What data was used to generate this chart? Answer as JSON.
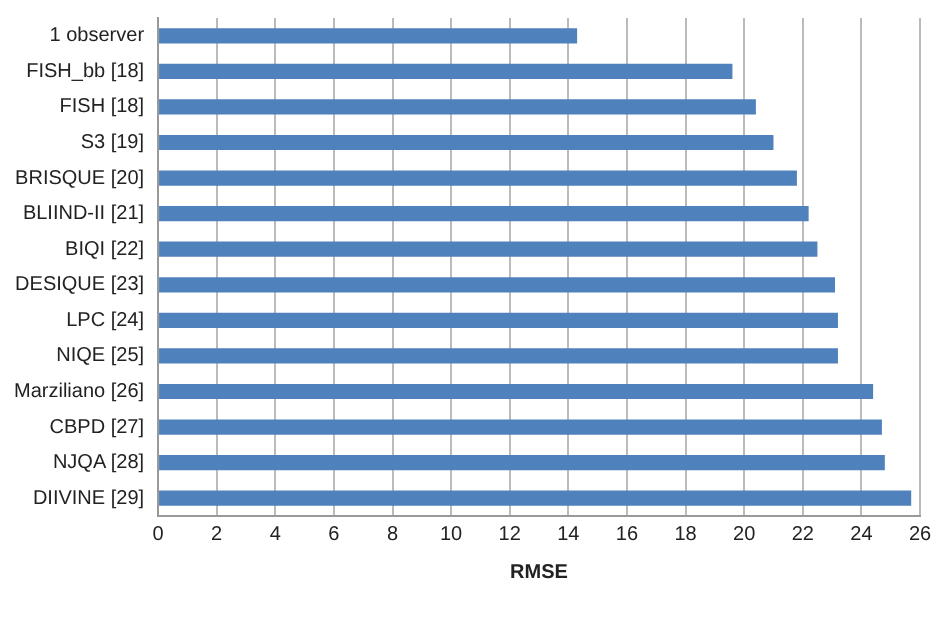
{
  "chart_data": {
    "type": "bar",
    "orientation": "horizontal",
    "xlabel": "RMSE",
    "categories": [
      "1 observer",
      "FISH_bb [18]",
      "FISH [18]",
      "S3 [19]",
      "BRISQUE [20]",
      "BLIIND-II [21]",
      "BIQI [22]",
      "DESIQUE [23]",
      "LPC [24]",
      "NIQE [25]",
      "Marziliano [26]",
      "CBPD [27]",
      "NJQA [28]",
      "DIIVINE [29]"
    ],
    "values": [
      14.3,
      19.6,
      20.4,
      21.0,
      21.8,
      22.2,
      22.5,
      23.1,
      23.2,
      23.2,
      24.4,
      24.7,
      24.8,
      25.7
    ],
    "color": "#4f81bd",
    "xlim": [
      0,
      26
    ],
    "xticks": [
      0,
      2,
      4,
      6,
      8,
      10,
      12,
      14,
      16,
      18,
      20,
      22,
      24,
      26
    ],
    "grid": "x",
    "legend": false
  }
}
